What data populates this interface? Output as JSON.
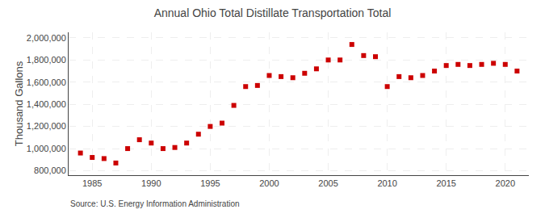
{
  "chart_data": {
    "type": "scatter",
    "title": "Annual Ohio Total Distillate Transportation Total",
    "ylabel": "Thousand Gallons",
    "annotation": "Source: U.S. Energy Information Administration",
    "color": "#cc0000",
    "marker": "square",
    "grid": true,
    "xlim": [
      1983,
      2022
    ],
    "ylim": [
      760000,
      2050000
    ],
    "xticks": [
      1985,
      1990,
      1995,
      2000,
      2005,
      2010,
      2015,
      2020
    ],
    "yticks": [
      {
        "value": 800000,
        "label": "800,000"
      },
      {
        "value": 1000000,
        "label": "1,000,000"
      },
      {
        "value": 1200000,
        "label": "1,200,000"
      },
      {
        "value": 1400000,
        "label": "1,400,000"
      },
      {
        "value": 1600000,
        "label": "1,600,000"
      },
      {
        "value": 1800000,
        "label": "1,800,000"
      },
      {
        "value": 2000000,
        "label": "2,000,000"
      }
    ],
    "x": [
      1984,
      1985,
      1986,
      1987,
      1988,
      1989,
      1990,
      1991,
      1992,
      1993,
      1994,
      1995,
      1996,
      1997,
      1998,
      1999,
      2000,
      2001,
      2002,
      2003,
      2004,
      2005,
      2006,
      2007,
      2008,
      2009,
      2010,
      2011,
      2012,
      2013,
      2014,
      2015,
      2016,
      2017,
      2018,
      2019,
      2020,
      2021
    ],
    "values": [
      960000,
      920000,
      910000,
      870000,
      1000000,
      1080000,
      1050000,
      1000000,
      1010000,
      1050000,
      1130000,
      1200000,
      1230000,
      1390000,
      1560000,
      1570000,
      1660000,
      1650000,
      1640000,
      1680000,
      1720000,
      1800000,
      1800000,
      1940000,
      1840000,
      1830000,
      1560000,
      1650000,
      1640000,
      1660000,
      1700000,
      1750000,
      1760000,
      1750000,
      1760000,
      1770000,
      1760000,
      1700000
    ]
  }
}
